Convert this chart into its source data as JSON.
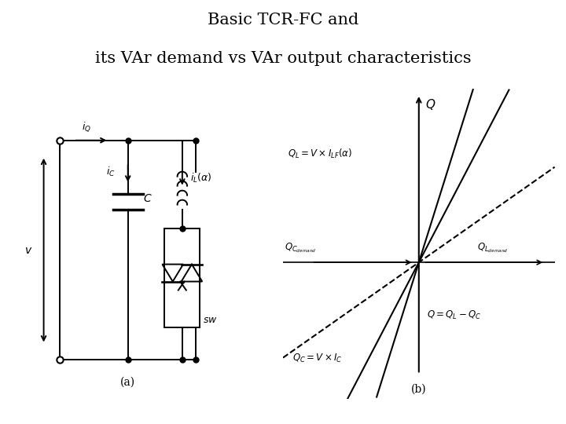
{
  "title_line1": "Basic TCR-FC and",
  "title_line2": "its VAr demand vs VAr output characteristics",
  "title_fontsize": 15,
  "bg_color": "#ffffff",
  "graph": {
    "ql_label": "$Q_L = V \\times I_{LF}(\\alpha)$",
    "q_label": "$Q = Q_L - Q_C$",
    "qc_label": "$Q_C = V \\times I_C$",
    "q_axis_label": "$Q$",
    "qc_demand_label": "$Q_{C_{demand}}$",
    "ql_demand_label": "$Q_{L_{demand}}$",
    "ql_slope": 2.5,
    "q_slope": 1.5,
    "qc_slope": 0.55,
    "x_range": [
      -1.4,
      1.4
    ],
    "y_range": [
      -1.1,
      1.4
    ]
  }
}
